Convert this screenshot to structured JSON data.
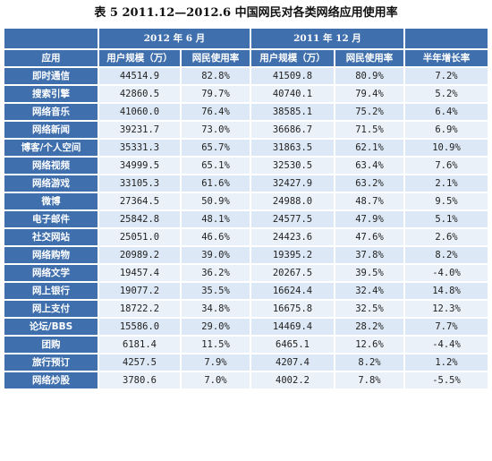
{
  "title": "表 5   2011.12—2012.6 中国网民对各类网络应用使用率",
  "header": {
    "group_2012": "2012 年 6 月",
    "group_2011": "2011 年 12 月",
    "col_app": "应用",
    "col_users_2012": "用户规模（万）",
    "col_rate_2012": "网民使用率",
    "col_users_2011": "用户规模（万）",
    "col_rate_2011": "网民使用率",
    "col_growth": "半年增长率"
  },
  "rows": [
    {
      "app": "即时通信",
      "users_2012": "44514.9",
      "rate_2012": "82.8%",
      "users_2011": "41509.8",
      "rate_2011": "80.9%",
      "growth": "7.2%"
    },
    {
      "app": "搜索引擎",
      "users_2012": "42860.5",
      "rate_2012": "79.7%",
      "users_2011": "40740.1",
      "rate_2011": "79.4%",
      "growth": "5.2%"
    },
    {
      "app": "网络音乐",
      "users_2012": "41060.0",
      "rate_2012": "76.4%",
      "users_2011": "38585.1",
      "rate_2011": "75.2%",
      "growth": "6.4%"
    },
    {
      "app": "网络新闻",
      "users_2012": "39231.7",
      "rate_2012": "73.0%",
      "users_2011": "36686.7",
      "rate_2011": "71.5%",
      "growth": "6.9%"
    },
    {
      "app": "博客/个人空间",
      "users_2012": "35331.3",
      "rate_2012": "65.7%",
      "users_2011": "31863.5",
      "rate_2011": "62.1%",
      "growth": "10.9%"
    },
    {
      "app": "网络视频",
      "users_2012": "34999.5",
      "rate_2012": "65.1%",
      "users_2011": "32530.5",
      "rate_2011": "63.4%",
      "growth": "7.6%"
    },
    {
      "app": "网络游戏",
      "users_2012": "33105.3",
      "rate_2012": "61.6%",
      "users_2011": "32427.9",
      "rate_2011": "63.2%",
      "growth": "2.1%"
    },
    {
      "app": "微博",
      "users_2012": "27364.5",
      "rate_2012": "50.9%",
      "users_2011": "24988.0",
      "rate_2011": "48.7%",
      "growth": "9.5%"
    },
    {
      "app": "电子邮件",
      "users_2012": "25842.8",
      "rate_2012": "48.1%",
      "users_2011": "24577.5",
      "rate_2011": "47.9%",
      "growth": "5.1%"
    },
    {
      "app": "社交网站",
      "users_2012": "25051.0",
      "rate_2012": "46.6%",
      "users_2011": "24423.6",
      "rate_2011": "47.6%",
      "growth": "2.6%"
    },
    {
      "app": "网络购物",
      "users_2012": "20989.2",
      "rate_2012": "39.0%",
      "users_2011": "19395.2",
      "rate_2011": "37.8%",
      "growth": "8.2%"
    },
    {
      "app": "网络文学",
      "users_2012": "19457.4",
      "rate_2012": "36.2%",
      "users_2011": "20267.5",
      "rate_2011": "39.5%",
      "growth": "-4.0%"
    },
    {
      "app": "网上银行",
      "users_2012": "19077.2",
      "rate_2012": "35.5%",
      "users_2011": "16624.4",
      "rate_2011": "32.4%",
      "growth": "14.8%"
    },
    {
      "app": "网上支付",
      "users_2012": "18722.2",
      "rate_2012": "34.8%",
      "users_2011": "16675.8",
      "rate_2011": "32.5%",
      "growth": "12.3%"
    },
    {
      "app": "论坛/BBS",
      "users_2012": "15586.0",
      "rate_2012": "29.0%",
      "users_2011": "14469.4",
      "rate_2011": "28.2%",
      "growth": "7.7%"
    },
    {
      "app": "团购",
      "users_2012": "6181.4",
      "rate_2012": "11.5%",
      "users_2011": "6465.1",
      "rate_2011": "12.6%",
      "growth": "-4.4%"
    },
    {
      "app": "旅行预订",
      "users_2012": "4257.5",
      "rate_2012": "7.9%",
      "users_2011": "4207.4",
      "rate_2011": "8.2%",
      "growth": "1.2%"
    },
    {
      "app": "网络炒股",
      "users_2012": "3780.6",
      "rate_2012": "7.0%",
      "users_2011": "4002.2",
      "rate_2011": "7.8%",
      "growth": "-5.5%"
    }
  ],
  "colors": {
    "header_blue": "#3f6fad",
    "cell_light": "#dce8f5",
    "cell_lighter": "#eaf1f9"
  }
}
